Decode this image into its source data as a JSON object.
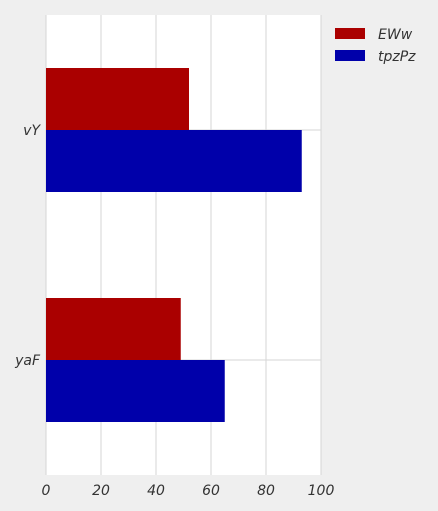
{
  "chart_data": {
    "type": "bar",
    "orientation": "horizontal",
    "categories": [
      "vY",
      "yaF"
    ],
    "series": [
      {
        "name": "EWw",
        "values": [
          52,
          49
        ],
        "color": "#aa0000"
      },
      {
        "name": "tpzPz",
        "values": [
          93,
          65
        ],
        "color": "#0000aa"
      }
    ],
    "xlim": [
      0,
      100
    ],
    "xticks": [
      0,
      20,
      40,
      60,
      80,
      100
    ],
    "grid": true,
    "legend_position": "top-right",
    "title": "",
    "xlabel": "",
    "ylabel": ""
  }
}
